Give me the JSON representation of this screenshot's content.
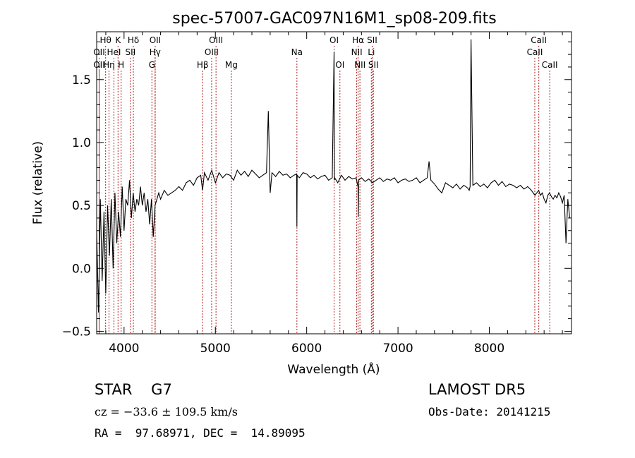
{
  "chart_data": {
    "type": "line",
    "title": "spec-57007-GAC097N16M1_sp08-209.fits",
    "xlabel": "Wavelength (Å)",
    "ylabel": "Flux (relative)",
    "xlim": [
      3700,
      8900
    ],
    "ylim": [
      -0.52,
      1.88
    ],
    "xticks": [
      4000,
      5000,
      6000,
      7000,
      8000
    ],
    "yticks": [
      -0.5,
      0.0,
      0.5,
      1.0,
      1.5
    ],
    "grid": false,
    "series": [
      {
        "x": [
          3700,
          3720,
          3740,
          3760,
          3780,
          3800,
          3820,
          3840,
          3860,
          3880,
          3900,
          3920,
          3940,
          3960,
          3980,
          4000,
          4020,
          4040,
          4060,
          4080,
          4100,
          4120,
          4140,
          4160,
          4180,
          4200,
          4220,
          4240,
          4260,
          4280,
          4300,
          4320,
          4340,
          4360,
          4380,
          4400,
          4440,
          4480,
          4520,
          4560,
          4600,
          4640,
          4680,
          4720,
          4760,
          4800,
          4840,
          4860,
          4880,
          4920,
          4960,
          5000,
          5040,
          5080,
          5120,
          5160,
          5200,
          5240,
          5280,
          5320,
          5360,
          5400,
          5440,
          5480,
          5520,
          5560,
          5580,
          5600,
          5620,
          5660,
          5700,
          5740,
          5780,
          5820,
          5860,
          5890,
          5893,
          5896,
          5920,
          5960,
          6000,
          6040,
          6080,
          6120,
          6160,
          6200,
          6240,
          6280,
          6300,
          6303,
          6306,
          6340,
          6380,
          6420,
          6460,
          6500,
          6540,
          6562,
          6565,
          6568,
          6600,
          6640,
          6680,
          6720,
          6760,
          6800,
          6840,
          6880,
          6920,
          6960,
          7000,
          7040,
          7080,
          7120,
          7160,
          7200,
          7240,
          7280,
          7320,
          7340,
          7360,
          7400,
          7440,
          7480,
          7520,
          7560,
          7600,
          7640,
          7680,
          7720,
          7760,
          7780,
          7790,
          7800,
          7820,
          7860,
          7900,
          7940,
          7980,
          8020,
          8060,
          8100,
          8140,
          8180,
          8220,
          8260,
          8300,
          8340,
          8380,
          8420,
          8460,
          8500,
          8540,
          8560,
          8580,
          8600,
          8620,
          8640,
          8660,
          8680,
          8700,
          8720,
          8740,
          8760,
          8780,
          8800,
          8820,
          8840,
          8860,
          8880
        ],
        "y": [
          0.3,
          -0.35,
          0.55,
          -0.1,
          0.45,
          -0.2,
          0.5,
          0.1,
          0.55,
          0.0,
          0.6,
          0.2,
          0.45,
          0.25,
          0.65,
          0.3,
          0.55,
          0.5,
          0.7,
          0.4,
          0.6,
          0.45,
          0.55,
          0.5,
          0.65,
          0.5,
          0.6,
          0.45,
          0.55,
          0.35,
          0.55,
          0.25,
          0.5,
          0.55,
          0.6,
          0.55,
          0.62,
          0.58,
          0.6,
          0.62,
          0.65,
          0.62,
          0.68,
          0.7,
          0.66,
          0.72,
          0.74,
          0.62,
          0.76,
          0.7,
          0.78,
          0.68,
          0.76,
          0.72,
          0.75,
          0.74,
          0.7,
          0.78,
          0.74,
          0.77,
          0.73,
          0.78,
          0.75,
          0.72,
          0.74,
          0.76,
          1.25,
          0.6,
          0.76,
          0.73,
          0.77,
          0.74,
          0.75,
          0.72,
          0.74,
          0.75,
          0.33,
          0.74,
          0.72,
          0.76,
          0.75,
          0.72,
          0.74,
          0.71,
          0.73,
          0.74,
          0.7,
          0.72,
          1.72,
          0.7,
          0.72,
          0.68,
          0.74,
          0.7,
          0.73,
          0.71,
          0.72,
          0.65,
          0.41,
          0.7,
          0.72,
          0.69,
          0.71,
          0.68,
          0.7,
          0.72,
          0.69,
          0.71,
          0.7,
          0.72,
          0.68,
          0.7,
          0.71,
          0.69,
          0.7,
          0.72,
          0.68,
          0.7,
          0.72,
          0.85,
          0.7,
          0.67,
          0.63,
          0.6,
          0.68,
          0.66,
          0.64,
          0.67,
          0.63,
          0.66,
          0.64,
          0.62,
          0.65,
          1.82,
          0.66,
          0.68,
          0.65,
          0.67,
          0.64,
          0.68,
          0.7,
          0.66,
          0.69,
          0.65,
          0.67,
          0.66,
          0.64,
          0.66,
          0.63,
          0.65,
          0.62,
          0.58,
          0.62,
          0.58,
          0.6,
          0.55,
          0.52,
          0.58,
          0.6,
          0.57,
          0.55,
          0.58,
          0.56,
          0.6,
          0.57,
          0.52,
          0.58,
          0.2,
          0.55,
          0.4
        ]
      }
    ],
    "lines": [
      {
        "label": "Hθ",
        "wl": 3798,
        "row": 0
      },
      {
        "label": "K",
        "wl": 3934,
        "row": 0
      },
      {
        "label": "Hδ",
        "wl": 4102,
        "row": 0
      },
      {
        "label": "OII",
        "wl": 4341,
        "row": 0
      },
      {
        "label": "OIII",
        "wl": 5007,
        "row": 0
      },
      {
        "label": "OI",
        "wl": 6300,
        "row": 0
      },
      {
        "label": "Hα",
        "wl": 6563,
        "row": 0
      },
      {
        "label": "SII",
        "wl": 6717,
        "row": 0
      },
      {
        "label": "CaII",
        "wl": 8542,
        "row": 0
      },
      {
        "label": "OII",
        "wl": 3727,
        "row": 1
      },
      {
        "label": "HeI",
        "wl": 3889,
        "row": 1
      },
      {
        "label": "SII",
        "wl": 4070,
        "row": 1
      },
      {
        "label": "Hγ",
        "wl": 4340,
        "row": 1
      },
      {
        "label": "OIII",
        "wl": 4959,
        "row": 1
      },
      {
        "label": "Na",
        "wl": 5893,
        "row": 1
      },
      {
        "label": "NII",
        "wl": 6548,
        "row": 1
      },
      {
        "label": "Li",
        "wl": 6708,
        "row": 1
      },
      {
        "label": "CaII",
        "wl": 8498,
        "row": 1
      },
      {
        "label": "OII",
        "wl": 3727,
        "row": 2
      },
      {
        "label": "Hη",
        "wl": 3835,
        "row": 2
      },
      {
        "label": "H",
        "wl": 3968,
        "row": 2
      },
      {
        "label": "G",
        "wl": 4305,
        "row": 2
      },
      {
        "label": "Hβ",
        "wl": 4861,
        "row": 2
      },
      {
        "label": "Mg",
        "wl": 5175,
        "row": 2
      },
      {
        "label": "OI",
        "wl": 6364,
        "row": 2
      },
      {
        "label": "NII",
        "wl": 6583,
        "row": 2
      },
      {
        "label": "SII",
        "wl": 6731,
        "row": 2
      },
      {
        "label": "CaII",
        "wl": 8662,
        "row": 2
      }
    ]
  },
  "info": {
    "class_text": "STAR    G7",
    "cz_text": "cz = −33.6 ± 109.5 km/s",
    "coords_text": "RA =  97.68971, DEC =  14.89095",
    "survey_text": "LAMOST DR5",
    "obsdate_text": "Obs-Date: 20141215"
  }
}
